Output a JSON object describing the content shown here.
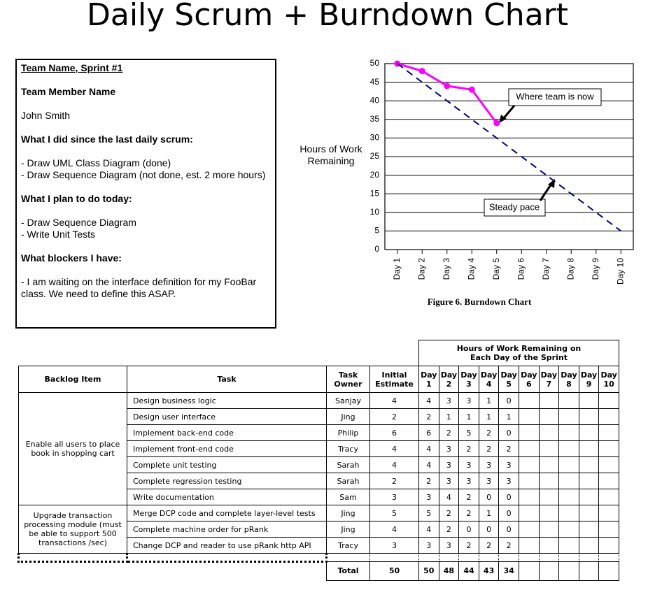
{
  "title": "Daily Scrum + Burndown Chart",
  "scrum_note": {
    "heading": "Team Name, Sprint #1",
    "member_label": "Team Member Name",
    "member": "John Smith",
    "sections": [
      {
        "heading": "What I did since the last daily scrum:",
        "items": [
          "- Draw UML Class Diagram (done)",
          "- Draw Sequence Diagram (not done, est. 2 more hours)"
        ]
      },
      {
        "heading": "What I plan to do today:",
        "items": [
          "- Draw Sequence Diagram",
          "- Write Unit Tests"
        ]
      },
      {
        "heading": "What blockers I have:",
        "items": [
          "- I am waiting on the interface definition for my FooBar class.  We need to define this ASAP."
        ]
      }
    ]
  },
  "chart_data": {
    "type": "line",
    "caption": "Figure 6. Burndown Chart",
    "y_label": "Hours of Work Remaining",
    "categories": [
      "Day 1",
      "Day 2",
      "Day 3",
      "Day 4",
      "Day 5",
      "Day 6",
      "Day 7",
      "Day 8",
      "Day 9",
      "Day 10"
    ],
    "series": [
      {
        "color": "#ff00ff",
        "markers": true,
        "values": [
          50,
          48,
          44,
          43,
          34,
          null,
          null,
          null,
          null,
          null
        ]
      },
      {
        "color": "#000080",
        "dashed": true,
        "values": [
          50,
          45,
          40,
          35,
          30,
          25,
          20,
          15,
          10,
          5
        ]
      }
    ],
    "ylim": [
      0,
      50
    ],
    "yticks": [
      0,
      5,
      10,
      15,
      20,
      25,
      30,
      35,
      40,
      45,
      50
    ],
    "grid": true,
    "annotations": [
      "Where team is now",
      "Steady pace"
    ]
  },
  "table": {
    "group_header": "Hours of Work Remaining on Each Day of the Sprint",
    "columns": [
      "Backlog Item",
      "Task",
      "Task Owner",
      "Initial Estimate",
      "Day 1",
      "Day 2",
      "Day 3",
      "Day 4",
      "Day 5",
      "Day 6",
      "Day 7",
      "Day 8",
      "Day 9",
      "Day 10"
    ],
    "groups": [
      {
        "item": "Enable all users to place book in shopping cart",
        "tasks": [
          {
            "task": "Design business logic",
            "owner": "Sanjay",
            "estimate": 4,
            "days": [
              4,
              3,
              3,
              1,
              0
            ]
          },
          {
            "task": "Design user interface",
            "owner": "Jing",
            "estimate": 2,
            "days": [
              2,
              1,
              1,
              1,
              1
            ]
          },
          {
            "task": "Implement back-end code",
            "owner": "Philip",
            "estimate": 6,
            "days": [
              6,
              2,
              5,
              2,
              0
            ]
          },
          {
            "task": "Implement front-end code",
            "owner": "Tracy",
            "estimate": 4,
            "days": [
              4,
              3,
              2,
              2,
              2
            ]
          },
          {
            "task": "Complete unit testing",
            "owner": "Sarah",
            "estimate": 4,
            "days": [
              4,
              3,
              3,
              3,
              3
            ]
          },
          {
            "task": "Complete regression testing",
            "owner": "Sarah",
            "estimate": 2,
            "days": [
              2,
              3,
              3,
              3,
              3
            ]
          },
          {
            "task": "Write documentation",
            "owner": "Sam",
            "estimate": 3,
            "days": [
              3,
              4,
              2,
              0,
              0
            ]
          }
        ]
      },
      {
        "item": "Upgrade transaction processing module (must be able to support 500 transactions /sec)",
        "tasks": [
          {
            "task": "Merge DCP code and complete layer-level tests",
            "owner": "Jing",
            "estimate": 5,
            "days": [
              5,
              2,
              2,
              1,
              0
            ]
          },
          {
            "task": "Complete machine order for pRank",
            "owner": "Jing",
            "estimate": 4,
            "days": [
              4,
              2,
              0,
              0,
              0
            ]
          },
          {
            "task": "Change DCP and reader to use pRank http API",
            "owner": "Tracy",
            "estimate": 3,
            "days": [
              3,
              3,
              2,
              2,
              2
            ]
          }
        ]
      }
    ],
    "total": {
      "label": "Total",
      "estimate": 50,
      "days": [
        50,
        48,
        44,
        43,
        34
      ]
    }
  }
}
